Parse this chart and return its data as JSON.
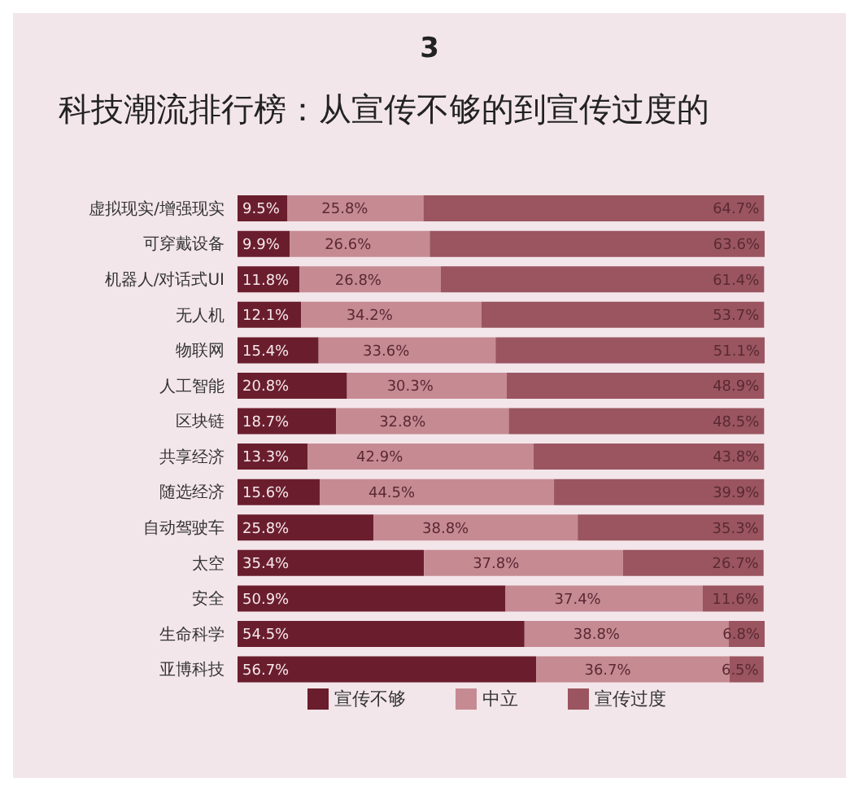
{
  "chart_data": {
    "type": "bar",
    "orientation": "horizontal",
    "stacked": true,
    "title": "科技潮流排行榜：从宣传不够的到宣传过度的",
    "annotations": [
      "3"
    ],
    "categories": [
      "虚拟现实/增强现实",
      "可穿戴设备",
      "机器人/对话式UI",
      "无人机",
      "物联网",
      "人工智能",
      "区块链",
      "共享经济",
      "随选经济",
      "自动驾驶车",
      "太空",
      "安全",
      "生命科学",
      "亚博科技"
    ],
    "series": [
      {
        "name": "宣传不够",
        "color": "#6a1e2d",
        "values": [
          9.5,
          9.9,
          11.8,
          12.1,
          15.4,
          20.8,
          18.7,
          13.3,
          15.6,
          25.8,
          35.4,
          50.9,
          54.5,
          56.7
        ],
        "value_labels": [
          "9.5%",
          "9.9%",
          "11.8%",
          "12.1%",
          "15.4%",
          "20.8%",
          "18.7%",
          "13.3%",
          "15.6%",
          "25.8%",
          "35.4%",
          "50.9%",
          "54.5%",
          "56.7%"
        ]
      },
      {
        "name": "中立",
        "color": "#c68a93",
        "values": [
          25.8,
          26.6,
          26.8,
          34.2,
          33.6,
          30.3,
          32.8,
          42.9,
          44.5,
          38.8,
          37.8,
          37.4,
          38.8,
          36.7
        ],
        "value_labels": [
          "25.8%",
          "26.6%",
          "26.8%",
          "34.2%",
          "33.6%",
          "30.3%",
          "32.8%",
          "42.9%",
          "44.5%",
          "38.8%",
          "37.8%",
          "37.4%",
          "38.8%",
          "36.7%"
        ]
      },
      {
        "name": "宣传过度",
        "color": "#9a5560",
        "values": [
          64.7,
          63.6,
          61.4,
          53.7,
          51.1,
          48.9,
          48.5,
          43.8,
          39.9,
          35.3,
          26.7,
          11.6,
          6.8,
          6.5
        ],
        "value_labels": [
          "64.7%",
          "63.6%",
          "61.4%",
          "53.7%",
          "51.1%",
          "48.9%",
          "48.5%",
          "43.8%",
          "39.9%",
          "35.3%",
          "26.7%",
          "11.6%",
          "6.8%",
          "6.5%"
        ]
      }
    ],
    "legend": "bottom",
    "grid": false
  }
}
